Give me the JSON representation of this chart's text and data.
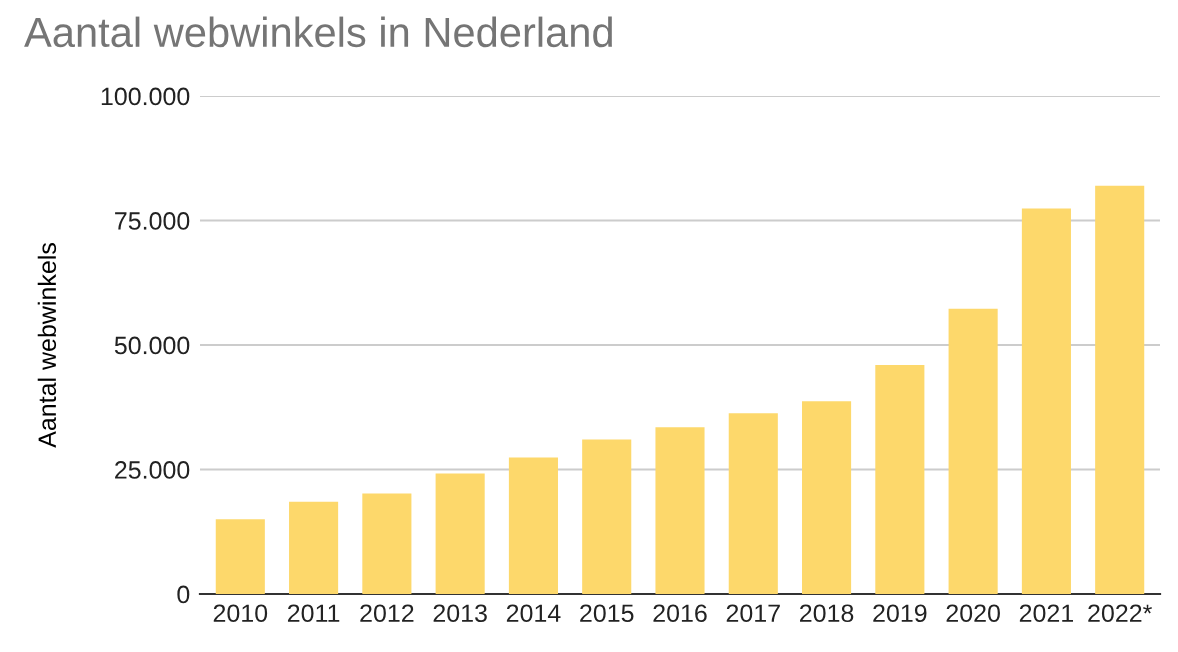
{
  "chart_data": {
    "type": "bar",
    "title": "Aantal webwinkels in Nederland",
    "ylabel": "Aantal webwinkels",
    "categories": [
      "2010",
      "2011",
      "2012",
      "2013",
      "2014",
      "2015",
      "2016",
      "2017",
      "2018",
      "2019",
      "2020",
      "2021",
      "2022*"
    ],
    "values": [
      15000,
      18500,
      20200,
      24200,
      27400,
      31000,
      33500,
      36300,
      38700,
      46000,
      57300,
      77400,
      82000
    ],
    "color": "#fdd86b",
    "ylim": [
      0,
      100000
    ],
    "yticks": [
      0,
      {
        "value": 25000,
        "label": "25.000"
      },
      {
        "value": 50000,
        "label": "50.000"
      },
      {
        "value": 75000,
        "label": "75.000"
      },
      {
        "value": 100000,
        "label": "100.000"
      }
    ],
    "grid": "y",
    "legend": false
  }
}
